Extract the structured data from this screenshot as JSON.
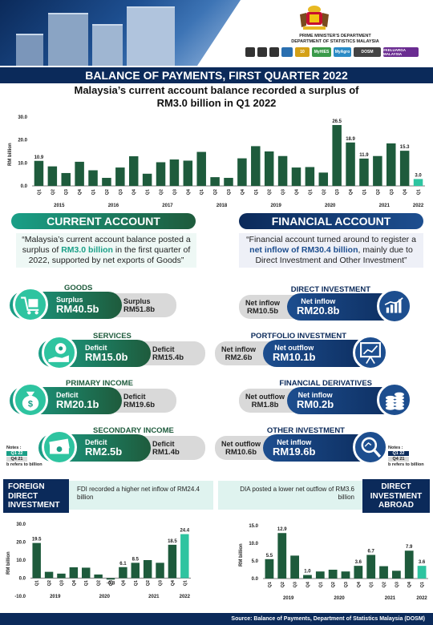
{
  "header": {
    "dept_line1": "PRIME MINISTER'S DEPARTMENT",
    "dept_line2": "DEPARTMENT OF STATISTICS MALAYSIA",
    "logo_texts": [
      "DOSM",
      "10",
      "MyHIES",
      "MyAgro",
      "#KELUARGA MALAYSIA"
    ]
  },
  "banner": "BALANCE OF PAYMENTS, FIRST QUARTER 2022",
  "subtitle_line1": "Malaysia’s current account balance recorded a surplus of",
  "subtitle_line2": "RM3.0 billion in Q1 2022",
  "current_account": {
    "title": "CURRENT ACCOUNT",
    "quote_pre": "“Malaysia’s current account balance posted a surplus of ",
    "quote_hl": "RM3.0 billion",
    "quote_post": " in the first quarter of 2022, supported by net exports of Goods”",
    "items": [
      {
        "label": "GOODS",
        "a_type": "Surplus",
        "a_val": "RM40.5b",
        "b_type": "Surplus",
        "b_val": "RM51.8b",
        "icon": "trolley-icon"
      },
      {
        "label": "SERVICES",
        "a_type": "Deficit",
        "a_val": "RM15.0b",
        "b_type": "Deficit",
        "b_val": "RM15.4b",
        "icon": "gear-hand-icon"
      },
      {
        "label": "PRIMARY INCOME",
        "a_type": "Deficit",
        "a_val": "RM20.1b",
        "b_type": "Deficit",
        "b_val": "RM19.6b",
        "icon": "money-bag-icon"
      },
      {
        "label": "SECONDARY INCOME",
        "a_type": "Deficit",
        "a_val": "RM2.5b",
        "b_type": "Deficit",
        "b_val": "RM1.4b",
        "icon": "cash-icon"
      }
    ]
  },
  "financial_account": {
    "title": "FINANCIAL ACCOUNT",
    "quote_pre": "“Financial account turned around to register a ",
    "quote_hl": "net inflow of RM30.4 billion",
    "quote_post": ", mainly due to Direct Investment and Other Investment”",
    "items": [
      {
        "label": "DIRECT INVESTMENT",
        "a_type": "Net inflow",
        "a_val": "RM20.8b",
        "b_type": "Net inflow",
        "b_val": "RM10.5b",
        "icon": "bar-chart-icon"
      },
      {
        "label": "PORTFOLIO INVESTMENT",
        "a_type": "Net outflow",
        "a_val": "RM10.1b",
        "b_type": "Net inflow",
        "b_val": "RM2.6b",
        "icon": "presentation-icon"
      },
      {
        "label": "FINANCIAL DERIVATIVES",
        "a_type": "Net inflow",
        "a_val": "RM0.2b",
        "b_type": "Net outflow",
        "b_val": "RM1.8b",
        "icon": "coins-icon"
      },
      {
        "label": "OTHER INVESTMENT",
        "a_type": "Net inflow",
        "a_val": "RM19.6b",
        "b_type": "Net outflow",
        "b_val": "RM10.6b",
        "icon": "magnifier-icon"
      }
    ]
  },
  "notes": {
    "title": "Notes :",
    "q1": "Q1 22",
    "q4": "Q4 21",
    "ref": "b refers to billion"
  },
  "fdi": {
    "title_lines": [
      "FOREIGN",
      "DIRECT",
      "INVESTMENT"
    ],
    "text": "FDI recorded a higher net inflow of RM24.4 billion"
  },
  "dia": {
    "title_lines": [
      "DIRECT",
      "INVESTMENT",
      "ABROAD"
    ],
    "text": "DIA posted a lower net outflow of RM3.6 billion"
  },
  "footer": "Source: Balance of Payments, Department of Statistics Malaysia (DOSM)",
  "colors": {
    "navy": "#0b2a5a",
    "green": "#1e5b3c",
    "teal": "#1a9f87",
    "light_teal": "#2ec4a0",
    "grey": "#d9d9d9"
  },
  "chart_data": [
    {
      "type": "bar",
      "ylabel": "RM billion",
      "ylim": [
        0,
        30
      ],
      "yticks": [
        "0.0",
        "10.0",
        "20.0",
        "30.0"
      ],
      "quarters": [
        "Q1",
        "Q2",
        "Q3",
        "Q4",
        "Q1",
        "Q2",
        "Q3",
        "Q4",
        "Q1",
        "Q2",
        "Q3",
        "Q4",
        "Q1",
        "Q2",
        "Q3",
        "Q4",
        "Q1",
        "Q2",
        "Q3",
        "Q4",
        "Q1",
        "Q2",
        "Q3",
        "Q4",
        "Q1",
        "Q2",
        "Q3",
        "Q4",
        "Q1"
      ],
      "years": [
        "2015",
        "2016",
        "2017",
        "2018",
        "2019",
        "2020",
        "2021",
        "2022"
      ],
      "values": [
        10.9,
        8.5,
        5.6,
        10.5,
        6.8,
        3.5,
        8.0,
        12.9,
        5.3,
        10.3,
        11.5,
        11.0,
        14.8,
        3.8,
        3.5,
        12.0,
        17.3,
        15.0,
        13.0,
        8.0,
        8.2,
        5.8,
        26.5,
        18.9,
        11.9,
        13.0,
        18.5,
        15.3,
        3.0
      ],
      "labels": [
        "10.9",
        "",
        "",
        "",
        "",
        "",
        "",
        "",
        "",
        "",
        "",
        "",
        "",
        "",
        "",
        "",
        "",
        "",
        "",
        "",
        "",
        "",
        "26.5",
        "18.9",
        "11.9",
        "",
        "",
        "15.3",
        "3.0"
      ]
    },
    {
      "type": "bar",
      "ylabel": "RM billion",
      "ylim": [
        -10,
        30
      ],
      "yticks": [
        "-10.0",
        "0.0",
        "10.0",
        "20.0",
        "30.0"
      ],
      "quarters": [
        "Q1",
        "Q2",
        "Q3",
        "Q4",
        "Q1",
        "Q2",
        "Q3",
        "Q4",
        "Q1",
        "Q2",
        "Q3",
        "Q4",
        "Q1"
      ],
      "years": [
        "2019",
        "2020",
        "2021",
        "2022"
      ],
      "values": [
        19.5,
        3.5,
        2.5,
        6.0,
        5.8,
        2.0,
        -0.8,
        6.1,
        8.5,
        10.0,
        8.5,
        18.5,
        24.4
      ],
      "labels": [
        "19.5",
        "",
        "",
        "",
        "",
        "",
        "-0.8",
        "6.1",
        "8.5",
        "",
        "",
        "18.5",
        "24.4"
      ]
    },
    {
      "type": "bar",
      "ylabel": "RM billion",
      "ylim": [
        0,
        15
      ],
      "yticks": [
        "0.0",
        "5.0",
        "10.0",
        "15.0"
      ],
      "quarters": [
        "Q1",
        "Q2",
        "Q3",
        "Q4",
        "Q1",
        "Q2",
        "Q3",
        "Q4",
        "Q1",
        "Q2",
        "Q3",
        "Q4",
        "Q1"
      ],
      "years": [
        "2019",
        "2020",
        "2021",
        "2022"
      ],
      "values": [
        5.5,
        12.9,
        6.5,
        1.0,
        2.0,
        2.5,
        2.0,
        3.6,
        6.7,
        3.5,
        2.2,
        7.9,
        3.6
      ],
      "labels": [
        "5.5",
        "12.9",
        "",
        "1.0",
        "",
        "",
        "",
        "3.6",
        "6.7",
        "",
        "",
        "7.9",
        "3.6"
      ]
    }
  ]
}
